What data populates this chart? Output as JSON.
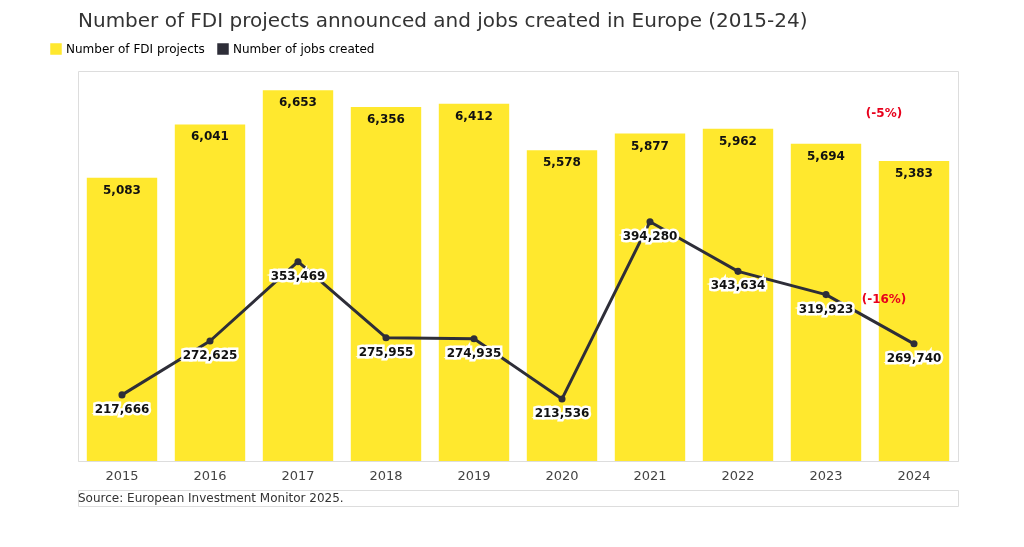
{
  "chart_data": {
    "type": "bar",
    "title": "Number of FDI projects announced and jobs created in Europe (2015-24)",
    "categories": [
      "2015",
      "2016",
      "2017",
      "2018",
      "2019",
      "2020",
      "2021",
      "2022",
      "2023",
      "2024"
    ],
    "series": [
      {
        "name": "Number of FDI projects",
        "color": "#ffe82e",
        "values": [
          5083,
          6041,
          6653,
          6356,
          6412,
          5578,
          5877,
          5962,
          5694,
          5383
        ],
        "value_labels": [
          "5,083",
          "6,041",
          "6,653",
          "6,356",
          "6,412",
          "5,578",
          "5,877",
          "5,962",
          "5,694",
          "5,383"
        ]
      },
      {
        "name": "Number of jobs created",
        "color": "#2e2e38",
        "type": "line",
        "axis": "y2",
        "values": [
          217666,
          272625,
          353469,
          275955,
          274935,
          213536,
          394280,
          343634,
          319923,
          269740
        ],
        "value_labels": [
          "217,666",
          "272,625",
          "353,469",
          "275,955",
          "274,935",
          "213,536",
          "394,280",
          "343,634",
          "319,923",
          "269,740"
        ]
      }
    ],
    "tick_labels": "x",
    "legend": "top left",
    "marker": "circle",
    "annotations": [
      "(-5%)",
      "(-16%)",
      "Source: European Investment Monitor 2025."
    ]
  }
}
